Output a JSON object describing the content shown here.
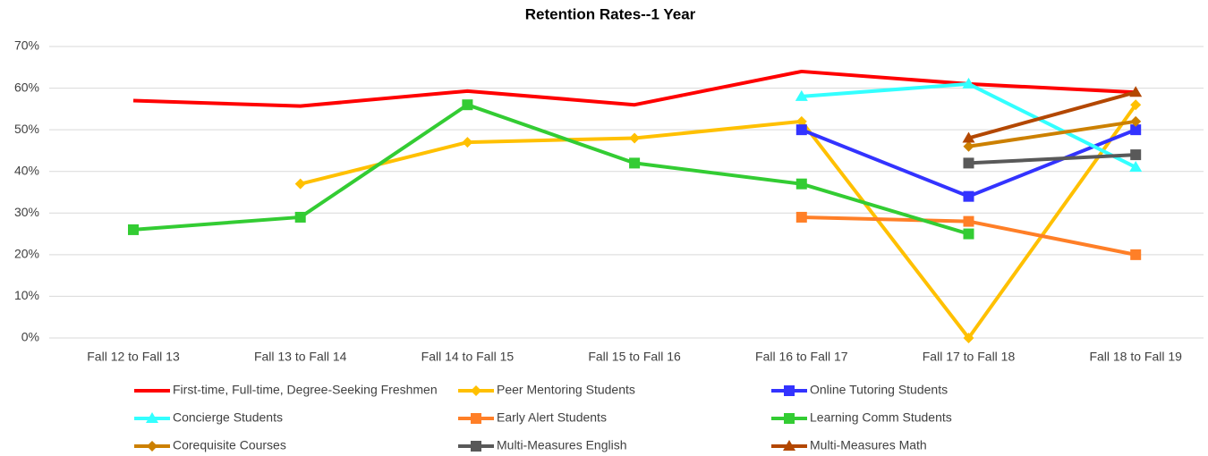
{
  "chart_data": {
    "type": "line",
    "title": "Retention Rates--1 Year",
    "categories": [
      "Fall 12 to Fall 13",
      "Fall 13 to Fall 14",
      "Fall 14 to Fall 15",
      "Fall 15 to Fall 16",
      "Fall 16 to Fall 17",
      "Fall 17 to Fall 18",
      "Fall 18 to Fall 19"
    ],
    "ylim": [
      0,
      70
    ],
    "yticks": [
      {
        "value": 0,
        "label": "0%"
      },
      {
        "value": 10,
        "label": "10%"
      },
      {
        "value": 20,
        "label": "20%"
      },
      {
        "value": 30,
        "label": "30%"
      },
      {
        "value": 40,
        "label": "40%"
      },
      {
        "value": 50,
        "label": "50%"
      },
      {
        "value": 60,
        "label": "60%"
      },
      {
        "value": 70,
        "label": "70%"
      }
    ],
    "grid": true,
    "legend": "bottom",
    "series": [
      {
        "name": "First-time, Full-time, Degree-Seeking Freshmen",
        "color": "#ff0000",
        "marker": "none",
        "values": [
          57,
          55.7,
          59.3,
          56,
          64,
          61,
          59
        ]
      },
      {
        "name": "Peer Mentoring Students",
        "color": "#ffc000",
        "marker": "diamond",
        "values": [
          null,
          37,
          47,
          48,
          52,
          0,
          56
        ]
      },
      {
        "name": "Online Tutoring Students",
        "color": "#3333ff",
        "marker": "square",
        "values": [
          null,
          null,
          null,
          null,
          50,
          34,
          50
        ]
      },
      {
        "name": "Concierge Students",
        "color": "#33ffff",
        "marker": "triangle",
        "values": [
          null,
          null,
          null,
          null,
          58,
          61,
          41
        ]
      },
      {
        "name": "Early Alert Students",
        "color": "#ff7f27",
        "marker": "square",
        "values": [
          null,
          null,
          null,
          null,
          29,
          28,
          20
        ]
      },
      {
        "name": "Learning Comm Students",
        "color": "#33cc33",
        "marker": "square",
        "values": [
          26,
          29,
          56,
          42,
          37,
          25,
          null
        ]
      },
      {
        "name": "Corequisite Courses",
        "color": "#cc8000",
        "marker": "diamond",
        "values": [
          null,
          null,
          null,
          null,
          null,
          46,
          52
        ]
      },
      {
        "name": "Multi-Measures English",
        "color": "#595959",
        "marker": "square",
        "values": [
          null,
          null,
          null,
          null,
          null,
          42,
          44
        ]
      },
      {
        "name": "Multi-Measures Math",
        "color": "#b34700",
        "marker": "triangle",
        "values": [
          null,
          null,
          null,
          null,
          null,
          48,
          59
        ]
      }
    ]
  }
}
